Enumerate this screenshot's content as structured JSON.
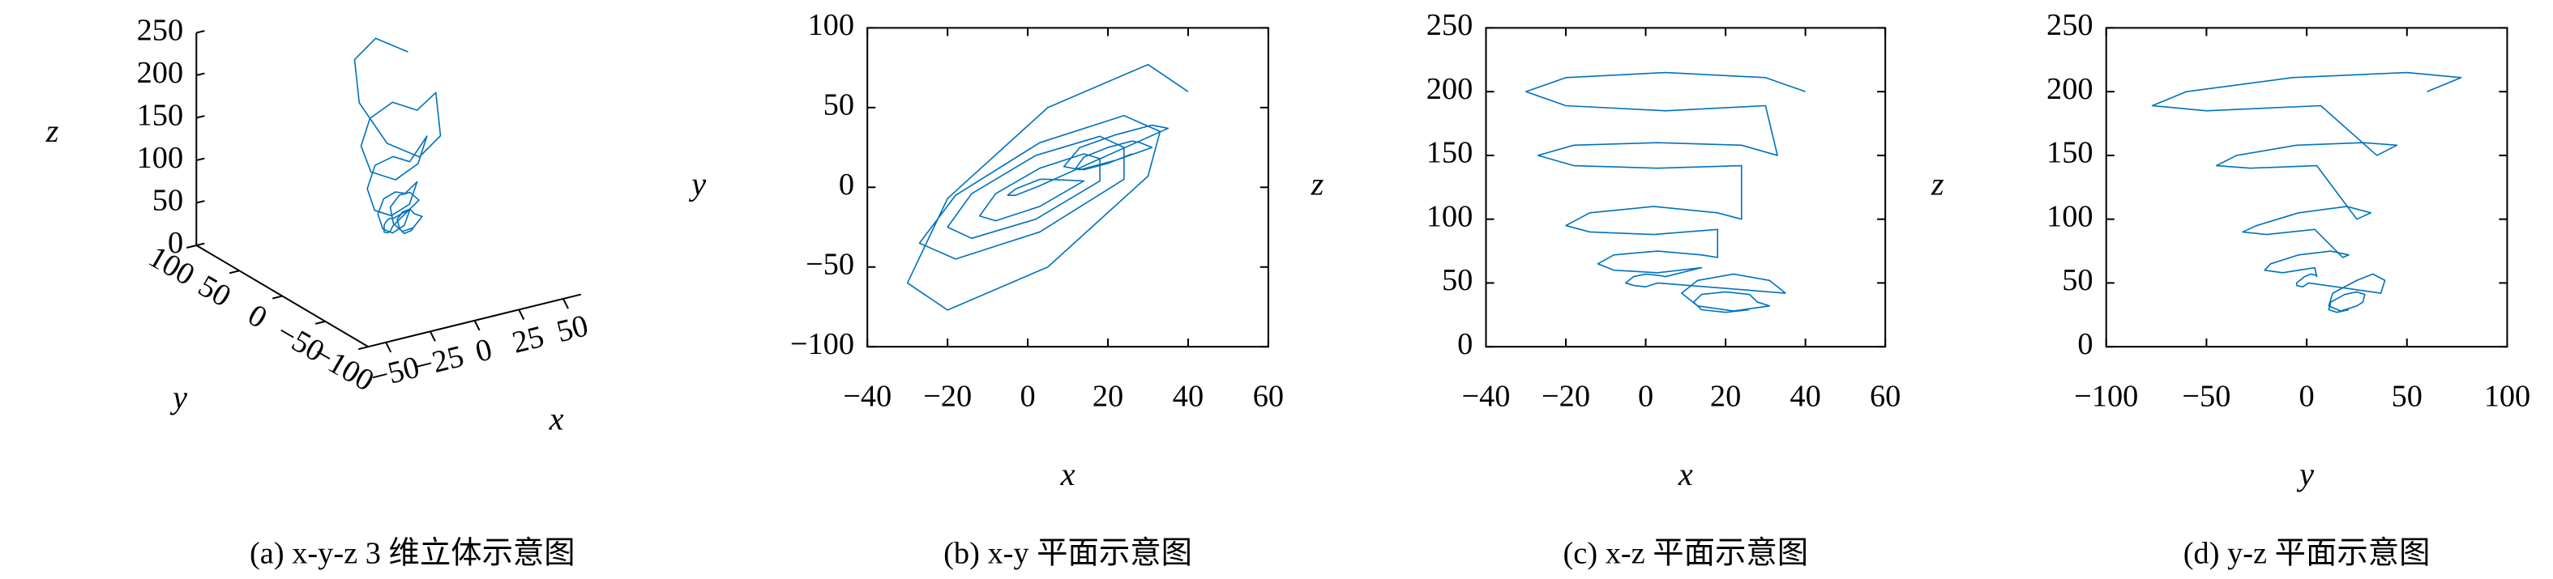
{
  "chart_data": [
    {
      "type": "line3d",
      "caption": "(a) x-y-z 3 维立体示意图",
      "xlabel": "x",
      "ylabel": "y",
      "zlabel": "z",
      "color": "#0072bd",
      "xlim": [
        -60,
        60
      ],
      "ylim": [
        -100,
        100
      ],
      "zlim": [
        0,
        250
      ],
      "xticks": [
        {
          "value": -50,
          "label": "−50"
        },
        {
          "value": -25,
          "label": "−25"
        },
        0,
        25,
        50
      ],
      "yticks": [
        100,
        50,
        0,
        {
          "value": -50,
          "label": "−50"
        },
        {
          "value": -100,
          "label": "−100"
        }
      ],
      "zticks": [
        0,
        50,
        100,
        150,
        200,
        250
      ],
      "x": [
        40,
        30,
        5,
        -20,
        -30,
        -20,
        5,
        30,
        33,
        24,
        3,
        -18,
        -27,
        -18,
        3,
        24,
        24,
        18,
        2,
        -14,
        -20,
        -14,
        2,
        18,
        18,
        14,
        3,
        -8,
        -12,
        -8,
        3,
        14,
        5,
        3,
        0,
        -3,
        -5,
        -3,
        0,
        3,
        35,
        31,
        22,
        13,
        9,
        13,
        22,
        31,
        28,
        26,
        20,
        14,
        12,
        14,
        20,
        26
      ],
      "y": [
        60,
        77,
        50,
        -7,
        -60,
        -77,
        -50,
        7,
        35,
        45,
        28,
        -5,
        -35,
        -45,
        -28,
        5,
        25,
        32,
        20,
        -4,
        -25,
        -32,
        -20,
        4,
        18,
        21,
        12,
        -4,
        -18,
        -21,
        -12,
        4,
        5,
        5,
        2,
        -1,
        -5,
        -5,
        -2,
        1,
        37,
        39,
        33,
        25,
        13,
        11,
        17,
        25,
        28,
        29,
        25,
        19,
        12,
        11,
        15,
        21
      ],
      "z": [
        200,
        211,
        215,
        211,
        200,
        189,
        185,
        189,
        150,
        158,
        160,
        158,
        150,
        142,
        140,
        142,
        100,
        105,
        110,
        105,
        95,
        90,
        88,
        92,
        70,
        72,
        75,
        72,
        65,
        60,
        58,
        62,
        55,
        56,
        57,
        55,
        50,
        48,
        47,
        50,
        42,
        52,
        57,
        52,
        42,
        32,
        28,
        32,
        35,
        41,
        43,
        41,
        35,
        29,
        27,
        29
      ]
    },
    {
      "type": "line",
      "caption": "(b) x-y 平面示意图",
      "xlabel": "x",
      "ylabel": "y",
      "color": "#0072bd",
      "xlim": [
        -40,
        60
      ],
      "ylim": [
        -100,
        100
      ],
      "xticks": [
        {
          "value": -40,
          "label": "−40"
        },
        {
          "value": -20,
          "label": "−20"
        },
        0,
        20,
        40,
        60
      ],
      "yticks": [
        {
          "value": -100,
          "label": "−100"
        },
        {
          "value": -50,
          "label": "−50"
        },
        0,
        50,
        100
      ],
      "x": [
        40,
        30,
        5,
        -20,
        -30,
        -20,
        5,
        30,
        33,
        24,
        3,
        -18,
        -27,
        -18,
        3,
        24,
        24,
        18,
        2,
        -14,
        -20,
        -14,
        2,
        18,
        18,
        14,
        3,
        -8,
        -12,
        -8,
        3,
        14,
        5,
        3,
        0,
        -3,
        -5,
        -3,
        0,
        3,
        35,
        31,
        22,
        13,
        9,
        13,
        22,
        31,
        28,
        26,
        20,
        14,
        12,
        14,
        20,
        26
      ],
      "values": [
        60,
        77,
        50,
        -7,
        -60,
        -77,
        -50,
        7,
        35,
        45,
        28,
        -5,
        -35,
        -45,
        -28,
        5,
        25,
        32,
        20,
        -4,
        -25,
        -32,
        -20,
        4,
        18,
        21,
        12,
        -4,
        -18,
        -21,
        -12,
        4,
        5,
        5,
        2,
        -1,
        -5,
        -5,
        -2,
        1,
        37,
        39,
        33,
        25,
        13,
        11,
        17,
        25,
        28,
        29,
        25,
        19,
        12,
        11,
        15,
        21
      ]
    },
    {
      "type": "line",
      "caption": "(c) x-z 平面示意图",
      "xlabel": "x",
      "ylabel": "z",
      "color": "#0072bd",
      "xlim": [
        -40,
        60
      ],
      "ylim": [
        0,
        250
      ],
      "xticks": [
        {
          "value": -40,
          "label": "−40"
        },
        {
          "value": -20,
          "label": "−20"
        },
        0,
        20,
        40,
        60
      ],
      "yticks": [
        0,
        50,
        100,
        150,
        200,
        250
      ],
      "x": [
        40,
        30,
        5,
        -20,
        -30,
        -20,
        5,
        30,
        33,
        24,
        3,
        -18,
        -27,
        -18,
        3,
        24,
        24,
        18,
        2,
        -14,
        -20,
        -14,
        2,
        18,
        18,
        14,
        3,
        -8,
        -12,
        -8,
        3,
        14,
        5,
        3,
        0,
        -3,
        -5,
        -3,
        0,
        3,
        35,
        31,
        22,
        13,
        9,
        13,
        22,
        31,
        28,
        26,
        20,
        14,
        12,
        14,
        20,
        26
      ],
      "values": [
        200,
        211,
        215,
        211,
        200,
        189,
        185,
        189,
        150,
        158,
        160,
        158,
        150,
        142,
        140,
        142,
        100,
        105,
        110,
        105,
        95,
        90,
        88,
        92,
        70,
        72,
        75,
        72,
        65,
        60,
        58,
        62,
        55,
        56,
        57,
        55,
        50,
        48,
        47,
        50,
        42,
        52,
        57,
        52,
        42,
        32,
        28,
        32,
        35,
        41,
        43,
        41,
        35,
        29,
        27,
        29
      ]
    },
    {
      "type": "line",
      "caption": "(d) y-z 平面示意图",
      "xlabel": "y",
      "ylabel": "z",
      "color": "#0072bd",
      "xlim": [
        -100,
        100
      ],
      "ylim": [
        0,
        250
      ],
      "xticks": [
        {
          "value": -100,
          "label": "−100"
        },
        {
          "value": -50,
          "label": "−50"
        },
        0,
        50,
        100
      ],
      "yticks": [
        0,
        50,
        100,
        150,
        200,
        250
      ],
      "x": [
        60,
        77,
        50,
        -7,
        -60,
        -77,
        -50,
        7,
        35,
        45,
        28,
        -5,
        -35,
        -45,
        -28,
        5,
        25,
        32,
        20,
        -4,
        -25,
        -32,
        -20,
        4,
        18,
        21,
        12,
        -4,
        -18,
        -21,
        -12,
        4,
        5,
        5,
        2,
        -1,
        -5,
        -5,
        -2,
        1,
        37,
        39,
        33,
        25,
        13,
        11,
        17,
        25,
        28,
        29,
        25,
        19,
        12,
        11,
        15,
        21
      ],
      "values": [
        200,
        211,
        215,
        211,
        200,
        189,
        185,
        189,
        150,
        158,
        160,
        158,
        150,
        142,
        140,
        142,
        100,
        105,
        110,
        105,
        95,
        90,
        88,
        92,
        70,
        72,
        75,
        72,
        65,
        60,
        58,
        62,
        55,
        56,
        57,
        55,
        50,
        48,
        47,
        50,
        42,
        52,
        57,
        52,
        42,
        32,
        28,
        32,
        35,
        41,
        43,
        41,
        35,
        29,
        27,
        29
      ]
    }
  ]
}
